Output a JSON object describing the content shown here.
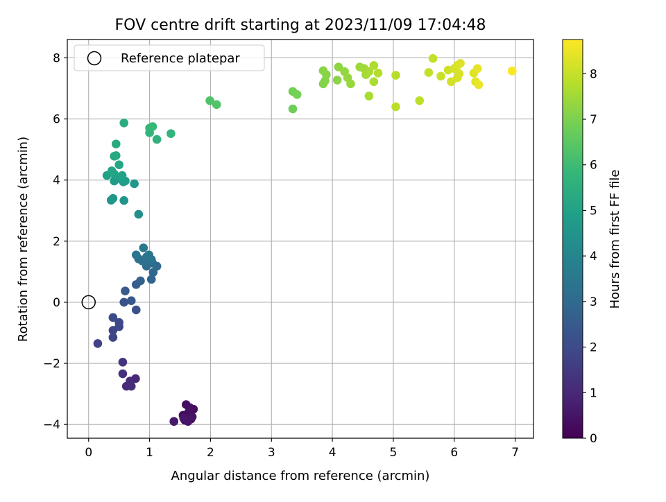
{
  "chart_data": {
    "type": "scatter",
    "title": "FOV centre drift starting at 2023/11/09 17:04:48",
    "xlabel": "Angular distance from reference (arcmin)",
    "ylabel": "Rotation from reference (arcmin)",
    "xlim": [
      -0.35,
      7.3
    ],
    "ylim": [
      -4.45,
      8.6
    ],
    "xticks": [
      0,
      1,
      2,
      3,
      4,
      5,
      6,
      7
    ],
    "yticks": [
      -4,
      -2,
      0,
      2,
      4,
      6,
      8
    ],
    "grid": true,
    "legend": {
      "placement": "top-left",
      "entries": [
        "Reference platepar"
      ]
    },
    "reference_point": {
      "x": 0,
      "y": 0,
      "label": "Reference platepar"
    },
    "colorbar": {
      "label": "Hours from first FF file",
      "colormap": "viridis",
      "range": [
        0,
        8.75
      ],
      "ticks": [
        0,
        1,
        2,
        3,
        4,
        5,
        6,
        7,
        8
      ],
      "colormap_stops": [
        "#440154",
        "#482878",
        "#3e4989",
        "#31688e",
        "#26828e",
        "#1f9e89",
        "#35b779",
        "#6ece58",
        "#b5de2b",
        "#fde725"
      ]
    },
    "points": [
      {
        "x": 1.62,
        "y": -3.78,
        "c": 0.05
      },
      {
        "x": 1.68,
        "y": -3.82,
        "c": 0.1
      },
      {
        "x": 1.58,
        "y": -3.86,
        "c": 0.15
      },
      {
        "x": 1.55,
        "y": -3.7,
        "c": 0.2
      },
      {
        "x": 1.72,
        "y": -3.5,
        "c": 0.25
      },
      {
        "x": 1.64,
        "y": -3.6,
        "c": 0.3
      },
      {
        "x": 1.6,
        "y": -3.35,
        "c": 0.35
      },
      {
        "x": 1.66,
        "y": -3.45,
        "c": 0.4
      },
      {
        "x": 1.7,
        "y": -3.75,
        "c": 0.45
      },
      {
        "x": 1.63,
        "y": -3.9,
        "c": 0.5
      },
      {
        "x": 1.56,
        "y": -3.8,
        "c": 0.55
      },
      {
        "x": 1.4,
        "y": -3.9,
        "c": 0.6
      },
      {
        "x": 0.77,
        "y": -2.5,
        "c": 1.0
      },
      {
        "x": 0.68,
        "y": -2.58,
        "c": 1.05
      },
      {
        "x": 0.62,
        "y": -2.75,
        "c": 1.1
      },
      {
        "x": 0.7,
        "y": -2.75,
        "c": 1.15
      },
      {
        "x": 0.56,
        "y": -2.34,
        "c": 1.2
      },
      {
        "x": 0.56,
        "y": -1.96,
        "c": 1.3
      },
      {
        "x": 0.15,
        "y": -1.35,
        "c": 1.7
      },
      {
        "x": 0.4,
        "y": -1.15,
        "c": 1.8
      },
      {
        "x": 0.4,
        "y": -0.92,
        "c": 1.85
      },
      {
        "x": 0.5,
        "y": -0.8,
        "c": 1.9
      },
      {
        "x": 0.5,
        "y": -0.66,
        "c": 1.95
      },
      {
        "x": 0.4,
        "y": -0.5,
        "c": 2.0
      },
      {
        "x": 0.78,
        "y": -0.25,
        "c": 2.2
      },
      {
        "x": 0.58,
        "y": 0.0,
        "c": 2.3
      },
      {
        "x": 0.7,
        "y": 0.05,
        "c": 2.4
      },
      {
        "x": 0.6,
        "y": 0.37,
        "c": 2.5
      },
      {
        "x": 0.78,
        "y": 0.58,
        "c": 2.6
      },
      {
        "x": 0.85,
        "y": 0.7,
        "c": 2.7
      },
      {
        "x": 1.03,
        "y": 0.75,
        "c": 2.8
      },
      {
        "x": 1.06,
        "y": 0.98,
        "c": 2.9
      },
      {
        "x": 1.12,
        "y": 1.18,
        "c": 3.0
      },
      {
        "x": 0.95,
        "y": 1.18,
        "c": 3.05
      },
      {
        "x": 1.0,
        "y": 1.32,
        "c": 3.1
      },
      {
        "x": 1.05,
        "y": 1.28,
        "c": 3.15
      },
      {
        "x": 0.88,
        "y": 1.35,
        "c": 3.2
      },
      {
        "x": 0.82,
        "y": 1.42,
        "c": 3.25
      },
      {
        "x": 0.95,
        "y": 1.48,
        "c": 3.3
      },
      {
        "x": 1.03,
        "y": 1.4,
        "c": 3.35
      },
      {
        "x": 0.78,
        "y": 1.55,
        "c": 3.4
      },
      {
        "x": 0.99,
        "y": 1.55,
        "c": 3.45
      },
      {
        "x": 0.9,
        "y": 1.78,
        "c": 3.5
      },
      {
        "x": 0.82,
        "y": 2.88,
        "c": 4.3
      },
      {
        "x": 0.37,
        "y": 3.34,
        "c": 4.5
      },
      {
        "x": 0.58,
        "y": 3.33,
        "c": 4.55
      },
      {
        "x": 0.4,
        "y": 3.4,
        "c": 4.6
      },
      {
        "x": 0.75,
        "y": 3.88,
        "c": 4.7
      },
      {
        "x": 0.57,
        "y": 3.94,
        "c": 4.75
      },
      {
        "x": 0.42,
        "y": 3.97,
        "c": 4.8
      },
      {
        "x": 0.6,
        "y": 3.97,
        "c": 4.85
      },
      {
        "x": 0.5,
        "y": 4.05,
        "c": 4.9
      },
      {
        "x": 0.3,
        "y": 4.15,
        "c": 4.95
      },
      {
        "x": 0.55,
        "y": 4.15,
        "c": 5.0
      },
      {
        "x": 0.42,
        "y": 4.2,
        "c": 5.05
      },
      {
        "x": 0.38,
        "y": 4.3,
        "c": 5.1
      },
      {
        "x": 0.5,
        "y": 4.5,
        "c": 5.15
      },
      {
        "x": 0.45,
        "y": 4.8,
        "c": 5.2
      },
      {
        "x": 0.42,
        "y": 4.78,
        "c": 5.25
      },
      {
        "x": 0.45,
        "y": 5.18,
        "c": 5.3
      },
      {
        "x": 0.58,
        "y": 5.87,
        "c": 5.4
      },
      {
        "x": 1.12,
        "y": 5.33,
        "c": 5.6
      },
      {
        "x": 1.35,
        "y": 5.52,
        "c": 5.7
      },
      {
        "x": 1.0,
        "y": 5.55,
        "c": 5.75
      },
      {
        "x": 1.0,
        "y": 5.7,
        "c": 5.8
      },
      {
        "x": 1.05,
        "y": 5.75,
        "c": 5.85
      },
      {
        "x": 1.99,
        "y": 6.6,
        "c": 6.3
      },
      {
        "x": 2.1,
        "y": 6.47,
        "c": 6.35
      },
      {
        "x": 3.35,
        "y": 6.33,
        "c": 6.8
      },
      {
        "x": 3.35,
        "y": 6.9,
        "c": 6.85
      },
      {
        "x": 3.42,
        "y": 6.8,
        "c": 6.9
      },
      {
        "x": 3.85,
        "y": 7.15,
        "c": 7.1
      },
      {
        "x": 3.88,
        "y": 7.25,
        "c": 7.12
      },
      {
        "x": 3.9,
        "y": 7.45,
        "c": 7.15
      },
      {
        "x": 3.85,
        "y": 7.58,
        "c": 7.18
      },
      {
        "x": 4.08,
        "y": 7.27,
        "c": 7.2
      },
      {
        "x": 4.1,
        "y": 7.7,
        "c": 7.25
      },
      {
        "x": 4.2,
        "y": 7.55,
        "c": 7.3
      },
      {
        "x": 4.25,
        "y": 7.35,
        "c": 7.35
      },
      {
        "x": 4.3,
        "y": 7.15,
        "c": 7.4
      },
      {
        "x": 4.45,
        "y": 7.7,
        "c": 7.45
      },
      {
        "x": 4.52,
        "y": 7.65,
        "c": 7.5
      },
      {
        "x": 4.55,
        "y": 7.45,
        "c": 7.55
      },
      {
        "x": 4.6,
        "y": 7.55,
        "c": 7.6
      },
      {
        "x": 4.6,
        "y": 6.75,
        "c": 7.62
      },
      {
        "x": 4.68,
        "y": 7.22,
        "c": 7.65
      },
      {
        "x": 4.68,
        "y": 7.75,
        "c": 7.7
      },
      {
        "x": 4.75,
        "y": 7.5,
        "c": 7.75
      },
      {
        "x": 5.04,
        "y": 7.43,
        "c": 7.8
      },
      {
        "x": 5.04,
        "y": 6.4,
        "c": 7.85
      },
      {
        "x": 5.43,
        "y": 6.6,
        "c": 7.9
      },
      {
        "x": 5.58,
        "y": 7.52,
        "c": 7.95
      },
      {
        "x": 5.65,
        "y": 7.98,
        "c": 8.0
      },
      {
        "x": 5.78,
        "y": 7.4,
        "c": 8.05
      },
      {
        "x": 5.9,
        "y": 7.6,
        "c": 8.1
      },
      {
        "x": 5.95,
        "y": 7.22,
        "c": 8.15
      },
      {
        "x": 6.0,
        "y": 7.65,
        "c": 8.2
      },
      {
        "x": 6.05,
        "y": 7.35,
        "c": 8.22
      },
      {
        "x": 6.08,
        "y": 7.48,
        "c": 8.25
      },
      {
        "x": 6.05,
        "y": 7.75,
        "c": 8.28
      },
      {
        "x": 6.1,
        "y": 7.82,
        "c": 8.3
      },
      {
        "x": 6.32,
        "y": 7.5,
        "c": 8.35
      },
      {
        "x": 6.35,
        "y": 7.22,
        "c": 8.4
      },
      {
        "x": 6.38,
        "y": 7.65,
        "c": 8.45
      },
      {
        "x": 6.4,
        "y": 7.12,
        "c": 8.5
      },
      {
        "x": 6.95,
        "y": 7.57,
        "c": 8.7
      }
    ]
  }
}
